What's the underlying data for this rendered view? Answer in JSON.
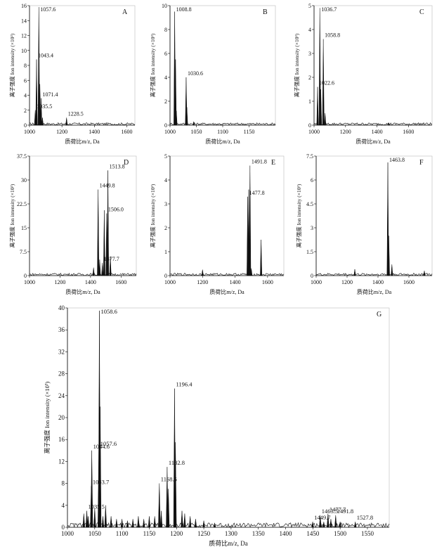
{
  "chart_data": [
    {
      "panel": "A",
      "type": "line",
      "xlim": [
        1000,
        1650
      ],
      "ylim": [
        0,
        16
      ],
      "xticks": [
        1000,
        1200,
        1400,
        1600
      ],
      "yticks": [
        0,
        2,
        4,
        6,
        8,
        10,
        12,
        14,
        16
      ],
      "xlabel": "质荷比m/z, Da",
      "ylabel": "离子强度 Ion intensity (×10³)",
      "peaks": [
        [
          1035.5,
          2.0
        ],
        [
          1043.4,
          8.8
        ],
        [
          1057.6,
          15.8
        ],
        [
          1064,
          5.5
        ],
        [
          1071.4,
          3.6
        ],
        [
          1080,
          1.0
        ],
        [
          1228.5,
          1.0
        ]
      ],
      "labels": [
        {
          "text": "1057.6",
          "x": 1057.6,
          "y": 15.8
        },
        {
          "text": "1043.4",
          "x": 1043.4,
          "y": 8.8
        },
        {
          "text": "1071.4",
          "x": 1071.4,
          "y": 3.6
        },
        {
          "text": "1035.5",
          "x": 1035.5,
          "y": 2.0
        },
        {
          "text": "1228.5",
          "x": 1228.5,
          "y": 1.0
        }
      ]
    },
    {
      "panel": "B",
      "type": "line",
      "xlim": [
        1000,
        1200
      ],
      "ylim": [
        0,
        10
      ],
      "xticks": [
        1000,
        1050,
        1100,
        1150
      ],
      "yticks": [
        0,
        2,
        4,
        6,
        8,
        10
      ],
      "xlabel": "质荷比m/z, Da",
      "ylabel": "离子强度 Ion intensity (×10³)",
      "peaks": [
        [
          1008.8,
          9.5
        ],
        [
          1010.5,
          5.5
        ],
        [
          1012,
          1.2
        ],
        [
          1030.6,
          4.0
        ],
        [
          1032,
          1.5
        ],
        [
          1045,
          0.3
        ]
      ],
      "labels": [
        {
          "text": "1008.8",
          "x": 1008.8,
          "y": 9.5
        },
        {
          "text": "1030.6",
          "x": 1030.6,
          "y": 4.0
        }
      ]
    },
    {
      "panel": "C",
      "type": "line",
      "xlim": [
        1000,
        1750
      ],
      "ylim": [
        0,
        5
      ],
      "xticks": [
        1000,
        1200,
        1400,
        1600
      ],
      "yticks": [
        0,
        1,
        2,
        3,
        4,
        5
      ],
      "xlabel": "质荷比m/z, Da",
      "ylabel": "离子强度 Ion intensity (×10³)",
      "peaks": [
        [
          1022.6,
          1.6
        ],
        [
          1036.7,
          4.9
        ],
        [
          1043,
          1.5
        ],
        [
          1058.8,
          3.6
        ],
        [
          1070,
          0.5
        ],
        [
          1475,
          0.1
        ]
      ],
      "labels": [
        {
          "text": "1036.7",
          "x": 1036.7,
          "y": 4.9
        },
        {
          "text": "1058.8",
          "x": 1058.8,
          "y": 3.6
        },
        {
          "text": "1022.6",
          "x": 1022.6,
          "y": 1.6
        }
      ]
    },
    {
      "panel": "D",
      "type": "line",
      "xlim": [
        1000,
        1700
      ],
      "ylim": [
        0,
        37.5
      ],
      "xticks": [
        1000,
        1200,
        1400,
        1600
      ],
      "yticks": [
        0,
        7.5,
        15,
        22.5,
        30,
        37.5
      ],
      "xlabel": "质荷比m/z, Da",
      "ylabel": "离子强度 Ion intensity (×10³)",
      "peaks": [
        [
          1420,
          2.5
        ],
        [
          1449.8,
          27.0
        ],
        [
          1460,
          5.0
        ],
        [
          1477.7,
          4.0
        ],
        [
          1490,
          20.5
        ],
        [
          1506.0,
          19.5
        ],
        [
          1513.8,
          33.0
        ],
        [
          1530,
          6.0
        ]
      ],
      "labels": [
        {
          "text": "1513.8",
          "x": 1513.8,
          "y": 33.0
        },
        {
          "text": "1449.8",
          "x": 1449.8,
          "y": 27.0
        },
        {
          "text": "1506.0",
          "x": 1506.0,
          "y": 19.5
        },
        {
          "text": "1477.7",
          "x": 1477.7,
          "y": 4.0
        }
      ]
    },
    {
      "panel": "E",
      "type": "line",
      "xlim": [
        1000,
        1700
      ],
      "ylim": [
        0,
        5
      ],
      "xticks": [
        1000,
        1200,
        1400,
        1600
      ],
      "yticks": [
        0,
        1,
        2,
        3,
        4,
        5
      ],
      "xlabel": "质荷比m/z, Da",
      "ylabel": "离子强度 Ion intensity (×10³)",
      "peaks": [
        [
          1200,
          0.25
        ],
        [
          1477.8,
          3.3
        ],
        [
          1484,
          3.6
        ],
        [
          1491.8,
          4.6
        ],
        [
          1500,
          0.3
        ],
        [
          1560,
          1.5
        ]
      ],
      "labels": [
        {
          "text": "1491.8",
          "x": 1491.8,
          "y": 4.6
        },
        {
          "text": "1477.8",
          "x": 1477.8,
          "y": 3.3
        }
      ]
    },
    {
      "panel": "F",
      "type": "line",
      "xlim": [
        1000,
        1750
      ],
      "ylim": [
        0,
        7.5
      ],
      "xticks": [
        1000,
        1200,
        1400,
        1600
      ],
      "yticks": [
        0,
        1.5,
        3,
        4.5,
        6,
        7.5
      ],
      "xlabel": "质荷比m/z, Da",
      "ylabel": "离子强度 Ion intensity (×10³)",
      "peaks": [
        [
          1250,
          0.4
        ],
        [
          1463.8,
          7.1
        ],
        [
          1470,
          2.5
        ],
        [
          1490,
          0.7
        ],
        [
          1700,
          0.3
        ]
      ],
      "labels": [
        {
          "text": "1463.8",
          "x": 1463.8,
          "y": 7.1
        }
      ]
    },
    {
      "panel": "G",
      "type": "line",
      "xlim": [
        1000,
        1590
      ],
      "ylim": [
        0,
        40
      ],
      "xticks": [
        1000,
        1050,
        1100,
        1150,
        1200,
        1250,
        1300,
        1350,
        1400,
        1450,
        1500,
        1550
      ],
      "yticks": [
        0,
        4,
        8,
        12,
        16,
        20,
        24,
        28,
        32,
        36,
        40
      ],
      "xlabel": "质荷比m/z, Da",
      "ylabel": "离子强度 Ion intensity (×10³)",
      "peaks": [
        [
          1030,
          2.5
        ],
        [
          1035.5,
          3.0
        ],
        [
          1038,
          2.0
        ],
        [
          1043.7,
          7.5
        ],
        [
          1044.6,
          14.0
        ],
        [
          1050,
          3.5
        ],
        [
          1057.6,
          14.5
        ],
        [
          1058.6,
          39.5
        ],
        [
          1060,
          22.0
        ],
        [
          1065,
          2.0
        ],
        [
          1070,
          4.0
        ],
        [
          1080,
          2.0
        ],
        [
          1090,
          1.5
        ],
        [
          1100,
          1.5
        ],
        [
          1110,
          1.2
        ],
        [
          1120,
          1.5
        ],
        [
          1130,
          2.0
        ],
        [
          1140,
          1.5
        ],
        [
          1150,
          2.0
        ],
        [
          1160,
          2.0
        ],
        [
          1168.5,
          8.0
        ],
        [
          1172,
          3.0
        ],
        [
          1182.8,
          11.0
        ],
        [
          1185,
          7.0
        ],
        [
          1196.4,
          25.3
        ],
        [
          1198,
          15.5
        ],
        [
          1210,
          3.0
        ],
        [
          1215,
          2.5
        ],
        [
          1225,
          2.0
        ],
        [
          1235,
          1.5
        ],
        [
          1250,
          1.2
        ],
        [
          1270,
          0.8
        ],
        [
          1449.7,
          1.0
        ],
        [
          1463.5,
          2.2
        ],
        [
          1470,
          1.0
        ],
        [
          1477.7,
          2.5
        ],
        [
          1483,
          1.5
        ],
        [
          1491.8,
          2.2
        ],
        [
          1500,
          1.0
        ],
        [
          1527.8,
          1.0
        ]
      ],
      "labels": [
        {
          "text": "1058.6",
          "x": 1058.6,
          "y": 39.5
        },
        {
          "text": "1196.4",
          "x": 1196.4,
          "y": 25.3
        },
        {
          "text": "1057.6",
          "x": 1057.6,
          "y": 14.5
        },
        {
          "text": "1044.6",
          "x": 1044.6,
          "y": 14.0
        },
        {
          "text": "1182.8",
          "x": 1182.8,
          "y": 11.0
        },
        {
          "text": "1168.5",
          "x": 1168.5,
          "y": 8.0
        },
        {
          "text": "1043.7",
          "x": 1043.7,
          "y": 7.5
        },
        {
          "text": "1035.5",
          "x": 1035.5,
          "y": 3.0
        },
        {
          "text": "1463.5",
          "x": 1463.5,
          "y": 2.2
        },
        {
          "text": "1477.7",
          "x": 1477.7,
          "y": 2.5
        },
        {
          "text": "1491.8",
          "x": 1491.8,
          "y": 2.2
        },
        {
          "text": "1449.7",
          "x": 1449.7,
          "y": 1.0
        },
        {
          "text": "1527.8",
          "x": 1527.8,
          "y": 1.0
        }
      ]
    }
  ]
}
